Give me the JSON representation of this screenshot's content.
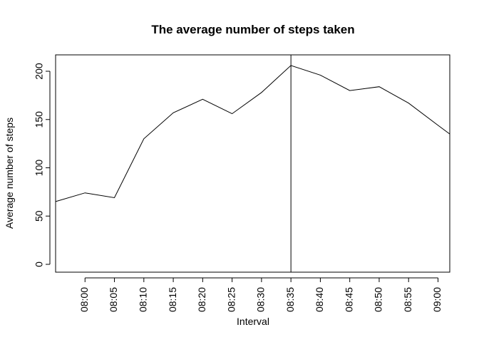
{
  "chart_data": {
    "type": "line",
    "title": "The average number of steps taken",
    "xlabel": "Interval",
    "ylabel": "Average number of steps",
    "x_tick_labels": [
      "08:00",
      "08:05",
      "08:10",
      "08:15",
      "08:20",
      "08:25",
      "08:30",
      "08:35",
      "08:40",
      "08:45",
      "08:50",
      "08:55",
      "09:00"
    ],
    "y_ticks": [
      0,
      50,
      100,
      150,
      200
    ],
    "xlim": [
      "07:55",
      "09:02"
    ],
    "ylim": [
      0,
      206
    ],
    "series": [
      {
        "x": [
          "07:55",
          "08:00",
          "08:05",
          "08:10",
          "08:15",
          "08:20",
          "08:25",
          "08:30",
          "08:35",
          "08:40",
          "08:45",
          "08:50",
          "08:55",
          "09:00",
          "09:02"
        ],
        "values": [
          65,
          74,
          69,
          130,
          157,
          171,
          156,
          178,
          206,
          196,
          180,
          184,
          167,
          144,
          135
        ]
      }
    ],
    "vertical_line_at": "08:35",
    "grid": false,
    "colors": {
      "line": "#000000",
      "background": "#ffffff"
    }
  }
}
